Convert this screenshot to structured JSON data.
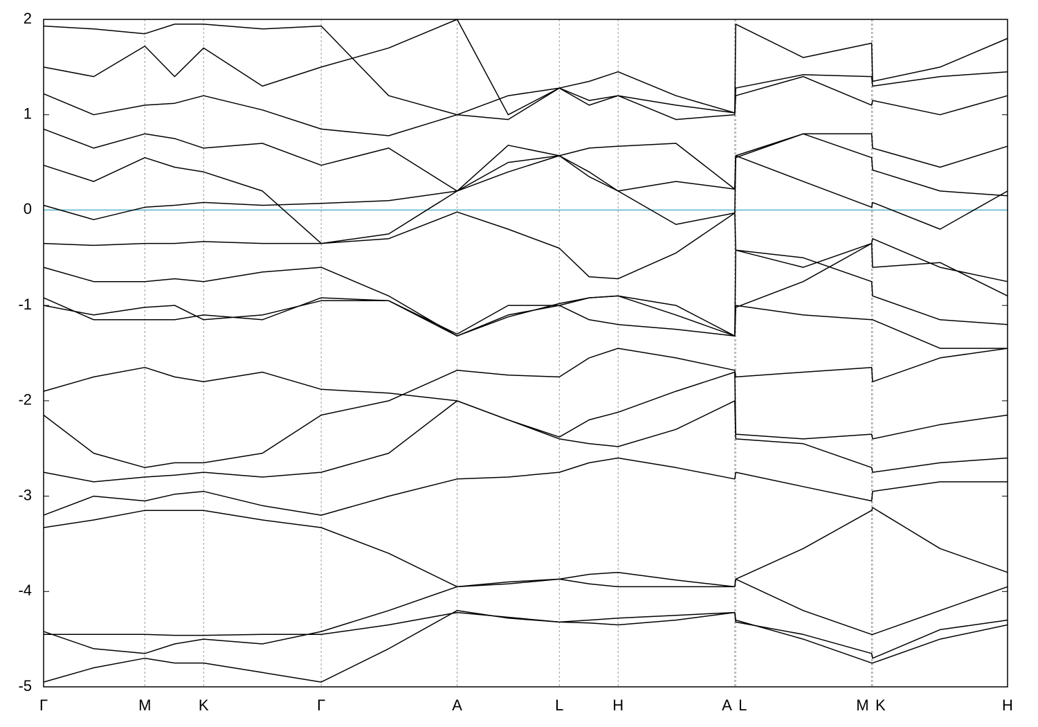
{
  "chart_data": {
    "type": "line",
    "x": [
      0,
      0.052,
      0.105,
      0.136,
      0.166,
      0.227,
      0.288,
      0.358,
      0.429,
      0.482,
      0.535,
      0.566,
      0.596,
      0.656,
      0.717,
      0.718,
      0.788,
      0.859,
      0.86,
      0.93,
      1.0
    ],
    "xlim": [
      0,
      1.0
    ],
    "xticks": [
      {
        "value": 0,
        "label": "Γ"
      },
      {
        "value": 0.105,
        "label": "M"
      },
      {
        "value": 0.166,
        "label": "K"
      },
      {
        "value": 0.288,
        "label": "Γ"
      },
      {
        "value": 0.429,
        "label": "A"
      },
      {
        "value": 0.535,
        "label": "L"
      },
      {
        "value": 0.596,
        "label": "H"
      },
      {
        "value": 0.717,
        "label": "A"
      },
      {
        "value": 0.718,
        "label": "L"
      },
      {
        "value": 0.859,
        "label": "M"
      },
      {
        "value": 0.86,
        "label": "K"
      },
      {
        "value": 1.0,
        "label": "H"
      }
    ],
    "ylim": [
      -5,
      2
    ],
    "yticks": [
      -5,
      -4,
      -3,
      -2,
      -1,
      0,
      1,
      2
    ],
    "xgrid": true,
    "line_color": "#000000",
    "reference_line": {
      "value": 0,
      "color": "#5ab4c9"
    },
    "series": [
      {
        "values": [
          -4.95,
          -4.8,
          -4.7,
          -4.75,
          -4.75,
          -4.85,
          -4.95,
          -4.6,
          -4.2,
          -4.28,
          -4.32,
          -4.33,
          -4.35,
          -4.3,
          -4.22,
          -4.3,
          -4.5,
          -4.75,
          -4.75,
          -4.5,
          -4.35
        ]
      },
      {
        "values": [
          -4.45,
          -4.45,
          -4.45,
          -4.46,
          -4.46,
          -4.45,
          -4.45,
          -4.35,
          -4.22,
          -4.27,
          -4.32,
          -4.3,
          -4.28,
          -4.25,
          -4.22,
          -4.32,
          -4.45,
          -4.65,
          -4.7,
          -4.4,
          -4.3
        ]
      },
      {
        "values": [
          -4.42,
          -4.6,
          -4.65,
          -4.55,
          -4.5,
          -4.55,
          -4.42,
          -4.2,
          -3.95,
          -3.9,
          -3.87,
          -3.82,
          -3.8,
          -3.88,
          -3.95,
          -3.87,
          -4.2,
          -4.45,
          -4.45,
          -4.2,
          -3.95
        ]
      },
      {
        "values": [
          -3.33,
          -3.25,
          -3.15,
          -3.15,
          -3.15,
          -3.25,
          -3.33,
          -3.6,
          -3.95,
          -3.92,
          -3.87,
          -3.92,
          -3.95,
          -3.95,
          -3.95,
          -3.87,
          -3.55,
          -3.15,
          -3.12,
          -3.55,
          -3.8
        ]
      },
      {
        "values": [
          -3.2,
          -3.0,
          -3.05,
          -2.98,
          -2.95,
          -3.1,
          -3.2,
          -3.0,
          -2.82,
          -2.8,
          -2.75,
          -2.65,
          -2.6,
          -2.7,
          -2.82,
          -2.75,
          -2.9,
          -3.05,
          -2.95,
          -2.85,
          -2.85
        ]
      },
      {
        "values": [
          -2.75,
          -2.85,
          -2.8,
          -2.78,
          -2.75,
          -2.8,
          -2.75,
          -2.55,
          -2.0,
          -2.2,
          -2.4,
          -2.45,
          -2.48,
          -2.3,
          -2.0,
          -2.4,
          -2.45,
          -2.7,
          -2.75,
          -2.65,
          -2.6
        ]
      },
      {
        "values": [
          -2.15,
          -2.55,
          -2.7,
          -2.65,
          -2.65,
          -2.55,
          -2.15,
          -2.0,
          -1.68,
          -1.73,
          -1.75,
          -1.55,
          -1.45,
          -1.55,
          -1.68,
          -1.75,
          -1.7,
          -1.65,
          -1.8,
          -1.55,
          -1.45
        ]
      },
      {
        "values": [
          -1.9,
          -1.75,
          -1.65,
          -1.75,
          -1.8,
          -1.7,
          -1.88,
          -1.92,
          -2.0,
          -2.2,
          -2.38,
          -2.2,
          -2.12,
          -1.9,
          -1.7,
          -2.35,
          -2.4,
          -2.35,
          -2.4,
          -2.25,
          -2.15
        ]
      },
      {
        "values": [
          -1.0,
          -1.1,
          -1.02,
          -1.0,
          -1.15,
          -1.1,
          -0.95,
          -0.95,
          -1.32,
          -1.1,
          -1.0,
          -1.15,
          -1.2,
          -1.25,
          -1.32,
          -1.02,
          -0.75,
          -0.35,
          -0.3,
          -0.6,
          -0.75
        ]
      },
      {
        "values": [
          -0.92,
          -1.15,
          -1.15,
          -1.15,
          -1.1,
          -1.15,
          -0.92,
          -0.95,
          -1.3,
          -1.0,
          -1.0,
          -0.92,
          -0.9,
          -1.0,
          -1.32,
          -1.0,
          -1.1,
          -1.15,
          -1.15,
          -1.45,
          -1.45
        ]
      },
      {
        "values": [
          -0.6,
          -0.75,
          -0.75,
          -0.72,
          -0.75,
          -0.65,
          -0.6,
          -0.9,
          -1.32,
          -1.12,
          -0.98,
          -0.92,
          -0.9,
          -1.1,
          -1.32,
          -0.42,
          -0.5,
          -0.75,
          -0.9,
          -1.15,
          -1.2
        ]
      },
      {
        "values": [
          -0.35,
          -0.37,
          -0.35,
          -0.35,
          -0.33,
          -0.35,
          -0.35,
          -0.3,
          -0.02,
          -0.2,
          -0.4,
          -0.7,
          -0.72,
          -0.45,
          -0.03,
          -0.42,
          -0.6,
          -0.35,
          -0.6,
          -0.55,
          -0.9
        ]
      },
      {
        "values": [
          0.05,
          -0.1,
          0.03,
          0.05,
          0.08,
          0.05,
          0.07,
          0.1,
          0.2,
          0.5,
          0.57,
          0.35,
          0.2,
          0.3,
          0.22,
          0.57,
          0.3,
          0.03,
          0.08,
          -0.2,
          0.2
        ]
      },
      {
        "values": [
          0.47,
          0.3,
          0.55,
          0.45,
          0.4,
          0.2,
          -0.35,
          -0.25,
          0.2,
          0.68,
          0.57,
          0.65,
          0.67,
          0.7,
          0.22,
          0.57,
          0.8,
          0.55,
          0.42,
          0.2,
          0.15
        ]
      },
      {
        "values": [
          0.85,
          0.65,
          0.8,
          0.75,
          0.65,
          0.7,
          0.47,
          0.65,
          0.2,
          0.4,
          0.57,
          0.4,
          0.2,
          -0.15,
          -0.03,
          0.55,
          0.8,
          0.8,
          0.65,
          0.45,
          0.67
        ]
      },
      {
        "values": [
          1.22,
          1.0,
          1.1,
          1.12,
          1.2,
          1.05,
          0.85,
          0.78,
          1.0,
          1.2,
          1.28,
          1.35,
          1.45,
          1.2,
          1.02,
          1.28,
          1.42,
          1.4,
          1.3,
          1.4,
          1.45
        ]
      },
      {
        "values": [
          1.5,
          1.4,
          1.72,
          1.4,
          1.7,
          1.3,
          1.5,
          1.7,
          2.0,
          1.0,
          1.28,
          1.15,
          1.2,
          1.1,
          1.02,
          1.2,
          1.4,
          1.1,
          1.15,
          1.0,
          1.2
        ]
      },
      {
        "values": [
          1.93,
          1.9,
          1.85,
          1.95,
          1.95,
          1.9,
          1.93,
          1.2,
          1.0,
          0.95,
          1.28,
          1.1,
          1.2,
          0.95,
          1.0,
          1.95,
          1.6,
          1.75,
          1.35,
          1.5,
          1.8
        ]
      }
    ]
  }
}
